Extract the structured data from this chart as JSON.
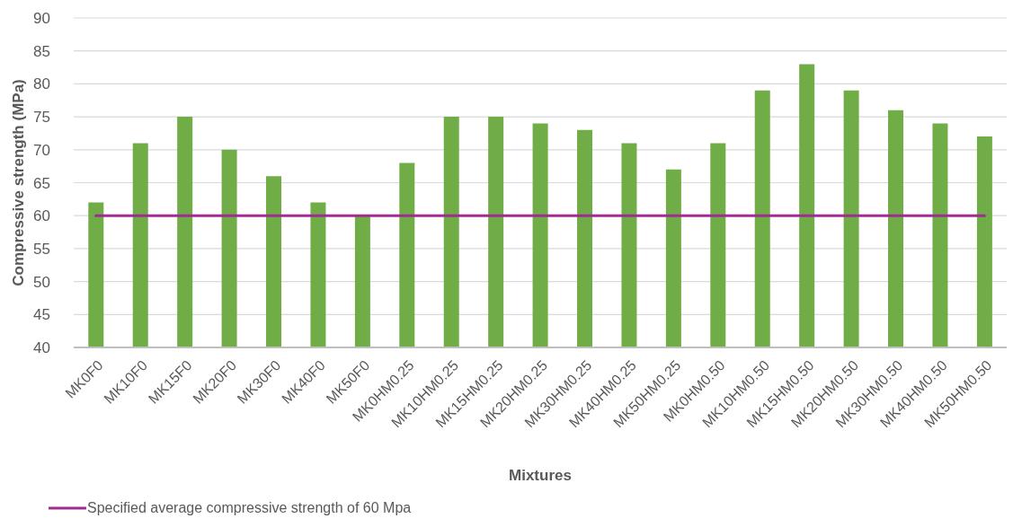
{
  "chart_data": {
    "type": "bar",
    "xlabel": "Mixtures",
    "ylabel": "Compressive strength (MPa)",
    "categories": [
      "MK0F0",
      "MK10F0",
      "MK15F0",
      "MK20F0",
      "MK30F0",
      "MK40F0",
      "MK50F0",
      "MK0HM0.25",
      "MK10HM0.25",
      "MK15HM0.25",
      "MK20HM0.25",
      "MK30HM0.25",
      "MK40HM0.25",
      "MK50HM0.25",
      "MK0HM0.50",
      "MK10HM0.50",
      "MK15HM0.50",
      "MK20HM0.50",
      "MK30HM0.50",
      "MK40HM0.50",
      "MK50HM0.50"
    ],
    "series": [
      {
        "color": "#70ad47",
        "values": [
          62,
          71,
          75,
          70,
          66,
          62,
          60,
          68,
          75,
          75,
          74,
          73,
          71,
          67,
          71,
          79,
          83,
          79,
          76,
          74,
          72
        ]
      },
      {
        "type": "line",
        "name": "Specified average compressive strength of 60 Mpa",
        "color": "#a02b93",
        "values": [
          60,
          60,
          60,
          60,
          60,
          60,
          60,
          60,
          60,
          60,
          60,
          60,
          60,
          60,
          60,
          60,
          60,
          60,
          60,
          60,
          60
        ]
      }
    ],
    "ylim": [
      40,
      90
    ],
    "yticks": [
      40,
      45,
      50,
      55,
      60,
      65,
      70,
      75,
      80,
      85,
      90
    ],
    "grid": "y",
    "legend": "bottom left",
    "marker": "none",
    "line_style": "solid"
  }
}
